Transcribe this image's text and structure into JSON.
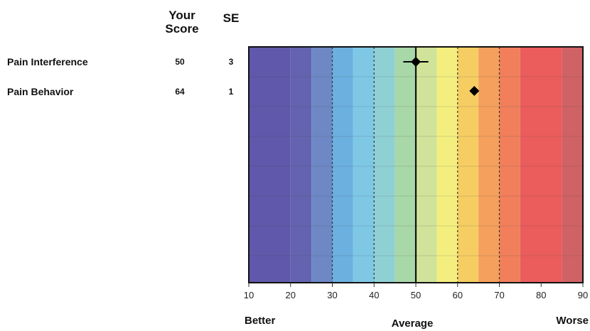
{
  "headers": {
    "score": "Your Score",
    "se": "SE"
  },
  "rows": [
    {
      "label": "Pain Interference",
      "score": "50",
      "se": "3"
    },
    {
      "label": "Pain Behavior",
      "score": "64",
      "se": "1"
    }
  ],
  "anchors": {
    "left": "Better",
    "middle": "Average",
    "right": "Worse"
  },
  "colors": {
    "bands": [
      "#5f58ab",
      "#6463b0",
      "#6d88c5",
      "#6cb0e0",
      "#7ec8e6",
      "#8fd0d4",
      "#a8d8a8",
      "#cfe39a",
      "#f3ee7e",
      "#f6cd62",
      "#f5a05c",
      "#f17f5c",
      "#ea5d5c",
      "#cf6264"
    ],
    "marker": "#000000"
  },
  "chart_data": {
    "type": "scatter",
    "title": "",
    "xlabel": "",
    "ylabel": "",
    "xlim": [
      10,
      90
    ],
    "xticks": [
      10,
      20,
      30,
      40,
      50,
      60,
      70,
      80,
      90
    ],
    "band_edges": [
      10,
      20,
      25,
      30,
      35,
      40,
      45,
      50,
      55,
      60,
      65,
      70,
      75,
      85,
      90
    ],
    "reference_lines": {
      "solid": [
        50
      ],
      "dashed": [
        30,
        40,
        60,
        70
      ]
    },
    "marker": "diamond",
    "series": [
      {
        "name": "Pain Interference",
        "x": 50,
        "se": 3
      },
      {
        "name": "Pain Behavior",
        "x": 64,
        "se": 1
      }
    ],
    "grid": true
  }
}
